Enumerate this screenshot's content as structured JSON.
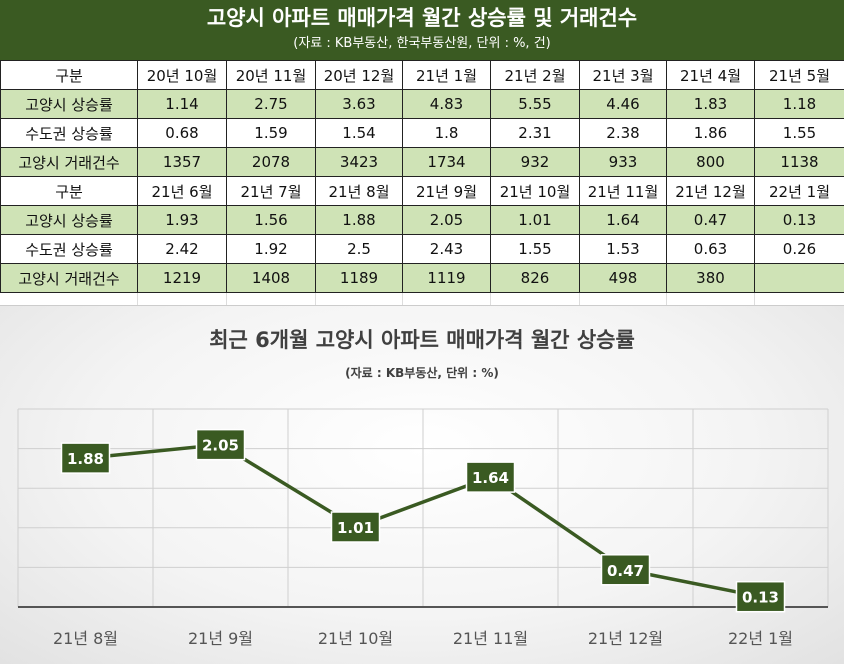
{
  "header": {
    "title": "고양시 아파트 매매가격 월간 상승률 및 거래건수",
    "subtitle": "(자료 : KB부동산, 한국부동산원, 단위 : %, 건)"
  },
  "table": {
    "block1": {
      "header_label": "구분",
      "months": [
        "20년 10월",
        "20년 11월",
        "20년 12월",
        "21년 1월",
        "21년 2월",
        "21년 3월",
        "21년 4월",
        "21년 5월"
      ],
      "rows": [
        {
          "label": "고양시 상승률",
          "values": [
            "1.14",
            "2.75",
            "3.63",
            "4.83",
            "5.55",
            "4.46",
            "1.83",
            "1.18"
          ]
        },
        {
          "label": "수도권 상승률",
          "values": [
            "0.68",
            "1.59",
            "1.54",
            "1.8",
            "2.31",
            "2.38",
            "1.86",
            "1.55"
          ]
        },
        {
          "label": "고양시 거래건수",
          "values": [
            "1357",
            "2078",
            "3423",
            "1734",
            "932",
            "933",
            "800",
            "1138"
          ]
        }
      ]
    },
    "block2": {
      "header_label": "구분",
      "months": [
        "21년 6월",
        "21년 7월",
        "21년 8월",
        "21년 9월",
        "21년 10월",
        "21년 11월",
        "21년 12월",
        "22년 1월"
      ],
      "rows": [
        {
          "label": "고양시 상승률",
          "values": [
            "1.93",
            "1.56",
            "1.88",
            "2.05",
            "1.01",
            "1.64",
            "0.47",
            "0.13"
          ]
        },
        {
          "label": "수도권 상승률",
          "values": [
            "2.42",
            "1.92",
            "2.5",
            "2.43",
            "1.55",
            "1.53",
            "0.63",
            "0.26"
          ]
        },
        {
          "label": "고양시 거래건수",
          "values": [
            "1219",
            "1408",
            "1189",
            "1119",
            "826",
            "498",
            "380",
            ""
          ]
        }
      ]
    }
  },
  "chart": {
    "title": "최근 6개월 고양시 아파트 매매가격 월간 상승률",
    "subtitle": "(자료 : KB부동산, 단위 : %)"
  },
  "colors": {
    "header_bg": "#3a5a22",
    "row_green": "#cfe3b6",
    "line": "#3a5a22",
    "label_bg": "#3a5a22"
  },
  "chart_data": {
    "type": "line",
    "title": "최근 6개월 고양시 아파트 매매가격 월간 상승률",
    "subtitle": "(자료 : KB부동산, 단위 : %)",
    "categories": [
      "21년 8월",
      "21년 9월",
      "21년 10월",
      "21년 11월",
      "21년 12월",
      "22년 1월"
    ],
    "values": [
      1.88,
      2.05,
      1.01,
      1.64,
      0.47,
      0.13
    ],
    "ylim": [
      0,
      2.5
    ],
    "grid": true,
    "legend": "none"
  }
}
